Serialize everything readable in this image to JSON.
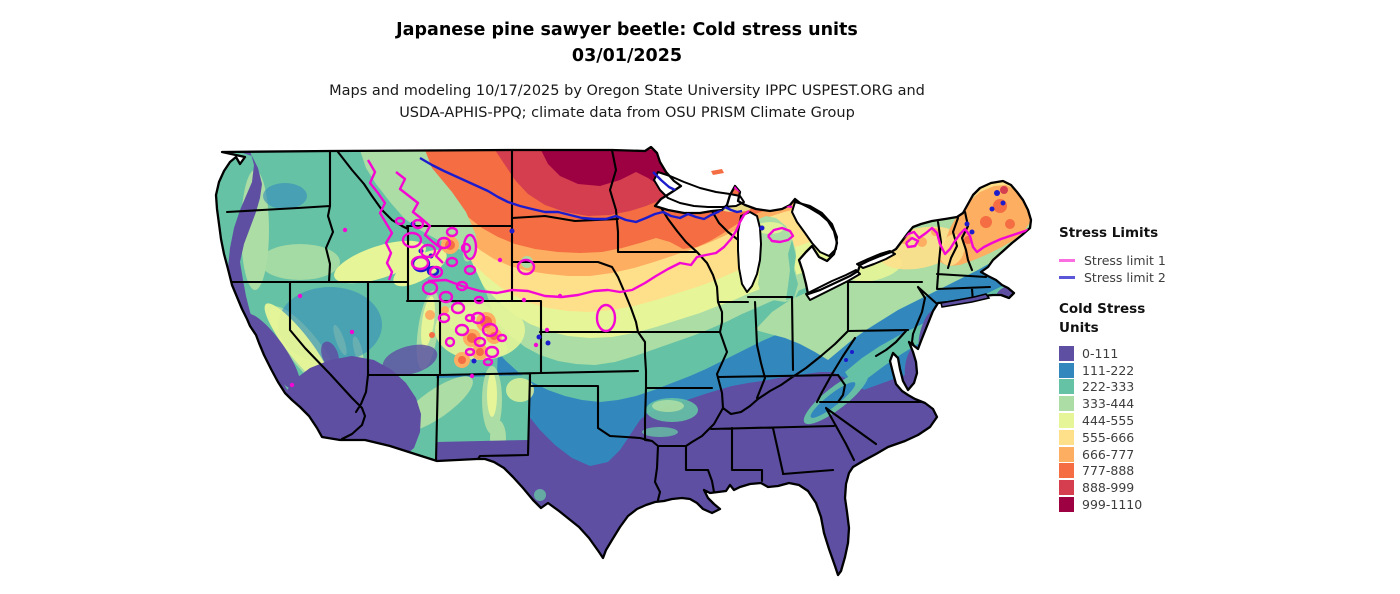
{
  "title": {
    "line1": "Japanese pine sawyer beetle: Cold stress units",
    "line2": "03/01/2025"
  },
  "subtitle": {
    "line1": "Maps and modeling 10/17/2025 by Oregon State University IPPC USPEST.ORG and",
    "line2": "USDA-APHIS-PPQ; climate data from OSU PRISM Climate Group"
  },
  "legend": {
    "stress_limits": {
      "heading": "Stress Limits",
      "items": [
        {
          "label": "Stress limit 1",
          "legend_color": "#fb6ee2",
          "map_color": "#f407d3"
        },
        {
          "label": "Stress limit 2",
          "legend_color": "#5b55d8",
          "map_color": "#1c1ccd"
        }
      ]
    },
    "cold_stress": {
      "heading": "Cold Stress Units",
      "classes": [
        {
          "label": "0-111",
          "color": "#5e4fa2"
        },
        {
          "label": "111-222",
          "color": "#3288bd"
        },
        {
          "label": "222-333",
          "color": "#66c2a5"
        },
        {
          "label": "333-444",
          "color": "#abdda4"
        },
        {
          "label": "444-555",
          "color": "#e6f598"
        },
        {
          "label": "555-666",
          "color": "#fee08b"
        },
        {
          "label": "666-777",
          "color": "#fdae61"
        },
        {
          "label": "777-888",
          "color": "#f46d43"
        },
        {
          "label": "888-999",
          "color": "#d53e4f"
        },
        {
          "label": "999-1110",
          "color": "#9e0142"
        }
      ]
    }
  },
  "map": {
    "state_border_color": "#000000",
    "water_color": "#ffffff"
  }
}
